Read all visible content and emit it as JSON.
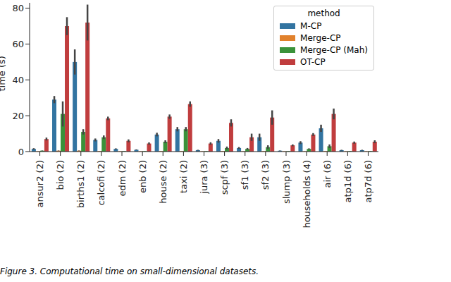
{
  "chart_data": {
    "type": "bar",
    "ylabel": "time (s)",
    "legend_title": "method",
    "legend": "upper right",
    "grid": false,
    "caption": "Figure 3. Computational time on small-dimensional datasets.",
    "categories": [
      "ansur2 (2)",
      "bio (2)",
      "births1 (2)",
      "calcofi (2)",
      "edm (2)",
      "enb (2)",
      "house (2)",
      "taxi (2)",
      "jura (3)",
      "scpf (3)",
      "sf1 (3)",
      "sf2 (3)",
      "slump (3)",
      "households (4)",
      "air (6)",
      "atp1d (6)",
      "atp7d (6)"
    ],
    "ylim": [
      0,
      83
    ],
    "yticks": [
      0,
      20,
      40,
      60,
      80
    ],
    "series": [
      {
        "name": "M-CP",
        "color": "#3274a1",
        "values": [
          1.5,
          29,
          50,
          6.5,
          1.5,
          1,
          9.5,
          12.5,
          0.8,
          6,
          2,
          8,
          0.5,
          5,
          13,
          0.8,
          0.8
        ],
        "errors": [
          0.4,
          2,
          7,
          0.8,
          0.3,
          0.2,
          1,
          1.2,
          0.2,
          1,
          0.5,
          2,
          0.1,
          0.8,
          2,
          0.2,
          0.2
        ]
      },
      {
        "name": "Merge-CP",
        "color": "#e1812c",
        "values": [
          0.2,
          0.5,
          0.5,
          0.3,
          0.2,
          0.2,
          0.3,
          0.3,
          0.2,
          0.3,
          0.2,
          0.3,
          0.2,
          0.2,
          0.3,
          0.2,
          0.2
        ],
        "errors": [
          0.05,
          0.1,
          0.1,
          0.05,
          0.05,
          0.05,
          0.05,
          0.05,
          0.05,
          0.05,
          0.05,
          0.05,
          0.05,
          0.05,
          0.05,
          0.05,
          0.05
        ]
      },
      {
        "name": "Merge-CP (Mah)",
        "color": "#3a923a",
        "values": [
          0.5,
          21,
          11,
          8,
          0.3,
          0.3,
          5.5,
          12.5,
          0.3,
          2,
          1.5,
          2.5,
          0.3,
          1.5,
          3,
          0.3,
          0.3
        ],
        "errors": [
          0.1,
          7,
          1.5,
          1,
          0.1,
          0.1,
          0.8,
          1.2,
          0.1,
          0.8,
          0.5,
          1,
          0.1,
          0.3,
          1,
          0.1,
          0.1
        ]
      },
      {
        "name": "OT-CP",
        "color": "#c03d3e",
        "values": [
          7,
          70,
          72,
          18.5,
          6,
          4.5,
          19.5,
          26.5,
          4.5,
          16,
          8,
          19,
          3.5,
          9.5,
          21,
          5,
          5.5
        ],
        "errors": [
          0.8,
          5,
          10,
          1,
          0.8,
          0.6,
          1.2,
          1.5,
          0.7,
          2,
          2,
          4,
          0.5,
          0.8,
          3,
          0.6,
          0.8
        ]
      }
    ]
  }
}
